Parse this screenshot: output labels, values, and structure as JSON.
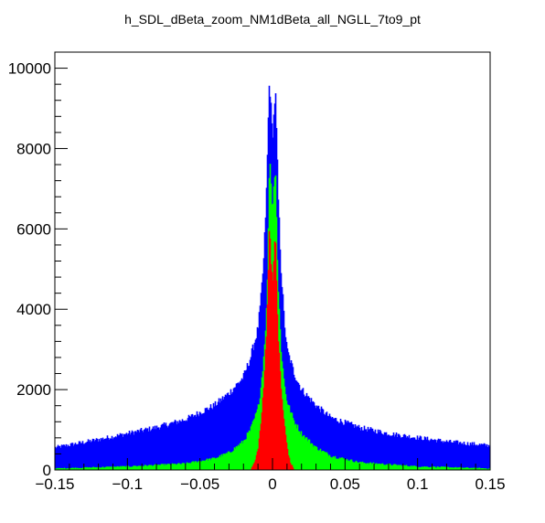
{
  "chart_data": {
    "type": "area",
    "title": "h_SDL_dBeta_zoom_NM1dBeta_all_NGLL_7to9_pt",
    "xlabel": "",
    "ylabel": "",
    "xlim": [
      -0.15,
      0.15
    ],
    "ylim": [
      0,
      10400
    ],
    "grid": false,
    "legend": "none",
    "x_ticks": [
      {
        "value": -0.15,
        "label": "−0.15"
      },
      {
        "value": -0.1,
        "label": "−0.1"
      },
      {
        "value": -0.05,
        "label": "−0.05"
      },
      {
        "value": 0,
        "label": "0"
      },
      {
        "value": 0.05,
        "label": "0.05"
      },
      {
        "value": 0.1,
        "label": "0.1"
      },
      {
        "value": 0.15,
        "label": "0.15"
      }
    ],
    "y_ticks": [
      {
        "value": 0,
        "label": "0"
      },
      {
        "value": 2000,
        "label": "2000"
      },
      {
        "value": 4000,
        "label": "4000"
      },
      {
        "value": 6000,
        "label": "6000"
      },
      {
        "value": 8000,
        "label": "8000"
      },
      {
        "value": 10000,
        "label": "10000"
      }
    ],
    "series": [
      {
        "color": "#0000ff",
        "x": [
          -0.15,
          -0.12,
          -0.1,
          -0.08,
          -0.06,
          -0.04,
          -0.03,
          -0.02,
          -0.015,
          -0.01,
          -0.008,
          -0.006,
          -0.004,
          -0.003,
          -0.002,
          -0.001,
          0.0,
          0.001,
          0.002,
          0.003,
          0.004,
          0.006,
          0.008,
          0.01,
          0.015,
          0.02,
          0.03,
          0.04,
          0.06,
          0.08,
          0.1,
          0.12,
          0.15
        ],
        "y": [
          550,
          750,
          900,
          1050,
          1250,
          1600,
          1900,
          2300,
          2800,
          3500,
          4200,
          5200,
          7000,
          8500,
          9800,
          9000,
          8300,
          8800,
          9500,
          8200,
          6800,
          5000,
          3800,
          3000,
          2400,
          2000,
          1600,
          1300,
          1050,
          900,
          800,
          700,
          600
        ]
      },
      {
        "color": "#00ff00",
        "x": [
          -0.15,
          -0.1,
          -0.06,
          -0.04,
          -0.03,
          -0.02,
          -0.015,
          -0.01,
          -0.008,
          -0.006,
          -0.004,
          -0.003,
          -0.002,
          -0.001,
          0.0,
          0.001,
          0.002,
          0.003,
          0.004,
          0.006,
          0.008,
          0.01,
          0.015,
          0.02,
          0.03,
          0.04,
          0.06,
          0.1,
          0.15
        ],
        "y": [
          30,
          80,
          150,
          280,
          420,
          700,
          1000,
          1500,
          2000,
          2800,
          4000,
          5500,
          7900,
          7200,
          6500,
          7000,
          7800,
          6000,
          4500,
          3000,
          2200,
          1700,
          1200,
          900,
          550,
          350,
          180,
          80,
          30
        ]
      },
      {
        "color": "#ff0000",
        "x": [
          -0.015,
          -0.012,
          -0.01,
          -0.008,
          -0.006,
          -0.004,
          -0.003,
          -0.002,
          -0.001,
          0.0,
          0.001,
          0.002,
          0.003,
          0.004,
          0.006,
          0.008,
          0.01,
          0.012,
          0.015
        ],
        "y": [
          0,
          200,
          500,
          1100,
          2000,
          3500,
          4800,
          6100,
          5300,
          4700,
          5200,
          5800,
          4500,
          3300,
          2000,
          1200,
          600,
          200,
          0
        ]
      }
    ]
  }
}
